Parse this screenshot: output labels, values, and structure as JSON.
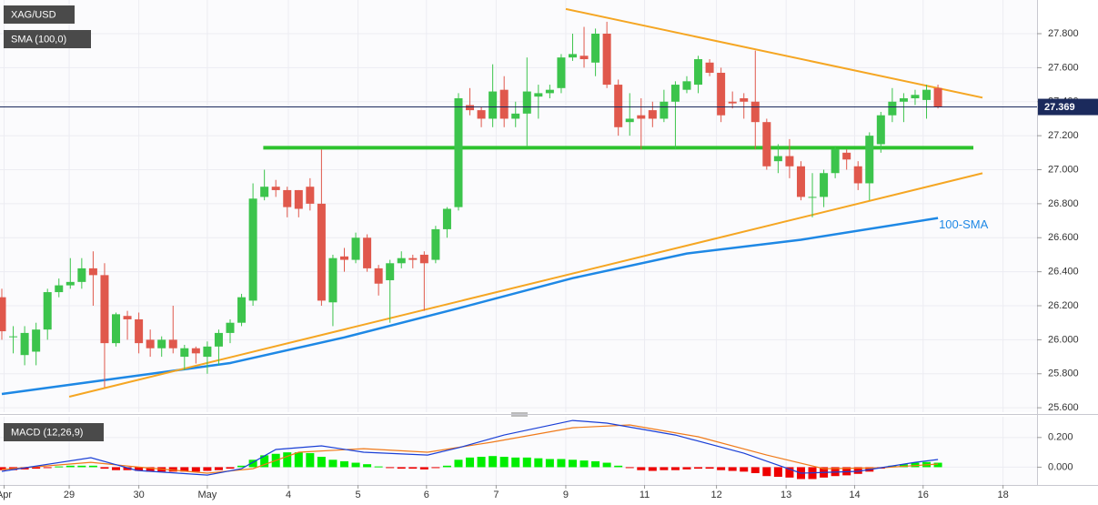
{
  "chart_data": [
    {
      "type": "candlestick",
      "title": "XAG/USD",
      "indicator_label": "SMA (100,0)",
      "up_color": "#3cc44c",
      "down_color": "#e0584c",
      "open": [
        26.25,
        26.02,
        25.91,
        25.93,
        26.06,
        26.28,
        26.32,
        26.34,
        26.42,
        26.38,
        25.98,
        26.14,
        26.12,
        26.0,
        25.95,
        26.0,
        25.9,
        25.95,
        25.9,
        25.96,
        26.04,
        26.1,
        26.23,
        26.84,
        26.9,
        26.88,
        26.88,
        26.9,
        26.8,
        26.22,
        26.49,
        26.47,
        26.6,
        26.42,
        26.35,
        26.45,
        26.48,
        26.5,
        26.47,
        26.65,
        26.78,
        27.38,
        27.35,
        27.3,
        27.47,
        27.3,
        27.33,
        27.43,
        27.45,
        27.48,
        27.66,
        27.67,
        27.63,
        27.8,
        27.5,
        27.28,
        27.32,
        27.35,
        27.3,
        27.4,
        27.47,
        27.5,
        27.63,
        27.57,
        27.4,
        27.42,
        27.4,
        27.28,
        27.05,
        27.08,
        27.02,
        26.84,
        26.84,
        26.98,
        27.1,
        27.02,
        26.92,
        27.15,
        27.32,
        27.4,
        27.42,
        27.41,
        27.48
      ],
      "high": [
        26.3,
        26.08,
        26.08,
        26.1,
        26.3,
        26.36,
        26.48,
        26.48,
        26.52,
        26.45,
        26.16,
        26.17,
        26.16,
        26.06,
        26.02,
        26.2,
        25.97,
        25.96,
        25.99,
        26.06,
        26.12,
        26.27,
        26.92,
        27.0,
        26.94,
        26.9,
        26.88,
        26.95,
        27.12,
        26.5,
        26.54,
        26.63,
        26.62,
        26.44,
        26.47,
        26.52,
        26.5,
        26.52,
        26.67,
        26.78,
        27.45,
        27.48,
        27.37,
        27.62,
        27.55,
        27.4,
        27.66,
        27.5,
        27.5,
        27.68,
        27.8,
        27.84,
        27.83,
        27.87,
        27.53,
        27.45,
        27.42,
        27.4,
        27.47,
        27.52,
        27.55,
        27.67,
        27.65,
        27.6,
        27.46,
        27.45,
        27.7,
        27.3,
        27.15,
        27.18,
        27.05,
        26.98,
        27.0,
        27.14,
        27.12,
        27.05,
        27.22,
        27.34,
        27.48,
        27.45,
        27.47,
        27.5,
        27.5
      ],
      "low": [
        26.0,
        25.92,
        25.85,
        25.85,
        26.0,
        26.25,
        26.3,
        26.3,
        26.2,
        25.72,
        25.96,
        26.0,
        25.92,
        25.9,
        25.9,
        25.92,
        25.82,
        25.86,
        25.8,
        25.85,
        25.98,
        26.08,
        26.2,
        26.82,
        26.84,
        26.72,
        26.72,
        26.76,
        26.2,
        26.08,
        26.4,
        26.45,
        26.4,
        26.26,
        26.1,
        26.42,
        26.42,
        26.17,
        26.45,
        26.6,
        26.76,
        27.32,
        27.25,
        27.25,
        27.25,
        27.25,
        27.14,
        27.3,
        27.42,
        27.45,
        27.64,
        27.6,
        27.55,
        27.48,
        27.2,
        27.2,
        27.12,
        27.25,
        27.28,
        27.12,
        27.45,
        27.45,
        27.55,
        27.28,
        27.36,
        27.3,
        27.12,
        27.0,
        26.98,
        26.95,
        26.82,
        26.72,
        26.78,
        26.95,
        27.0,
        26.88,
        26.82,
        27.1,
        27.28,
        27.28,
        27.38,
        27.3,
        27.36
      ],
      "close": [
        26.05,
        26.02,
        26.04,
        26.06,
        26.28,
        26.32,
        26.34,
        26.42,
        26.38,
        25.98,
        26.15,
        26.12,
        25.98,
        25.95,
        26.0,
        25.95,
        25.95,
        25.92,
        25.96,
        26.04,
        26.1,
        26.25,
        26.83,
        26.9,
        26.88,
        26.78,
        26.77,
        26.8,
        26.23,
        26.48,
        26.47,
        26.6,
        26.42,
        26.33,
        26.45,
        26.48,
        26.47,
        26.45,
        26.65,
        26.77,
        27.42,
        27.35,
        27.3,
        27.46,
        27.3,
        27.33,
        27.46,
        27.45,
        27.47,
        27.66,
        27.68,
        27.65,
        27.8,
        27.5,
        27.25,
        27.3,
        27.3,
        27.3,
        27.4,
        27.5,
        27.52,
        27.65,
        27.57,
        27.32,
        27.39,
        27.4,
        27.28,
        27.02,
        27.08,
        27.02,
        26.84,
        26.84,
        26.98,
        27.12,
        27.06,
        26.92,
        27.2,
        27.32,
        27.4,
        27.42,
        27.44,
        27.47,
        27.369
      ],
      "sma": {
        "name": "100-SMA",
        "color": "#1e88e5",
        "x": [
          0,
          10,
          20,
          30,
          40,
          50,
          60,
          70,
          82
        ],
        "values": [
          25.681,
          25.772,
          25.863,
          26.014,
          26.185,
          26.362,
          26.507,
          26.588,
          26.716
        ]
      },
      "trendlines": [
        {
          "color": "#f5a623",
          "x": [
            49.4,
            85.9
          ],
          "values": [
            27.945,
            27.424
          ]
        },
        {
          "color": "#f5a623",
          "x": [
            5.9,
            85.9
          ],
          "values": [
            25.665,
            26.979
          ]
        },
        {
          "color": "#2ec22e",
          "x": [
            22.9,
            85.1
          ],
          "values": [
            27.129,
            27.129
          ]
        }
      ],
      "last_price": 27.369,
      "last_price_color": "#1b2a5c",
      "xlim": [
        -0.16,
        90.68
      ],
      "ylim": [
        25.574,
        27.998
      ],
      "yticks": [
        {
          "value": 25.6,
          "label": "25.600"
        },
        {
          "value": 25.8,
          "label": "25.800"
        },
        {
          "value": 26.0,
          "label": "26.000"
        },
        {
          "value": 26.2,
          "label": "26.200"
        },
        {
          "value": 26.4,
          "label": "26.400"
        },
        {
          "value": 26.6,
          "label": "26.600"
        },
        {
          "value": 26.8,
          "label": "26.800"
        },
        {
          "value": 27.0,
          "label": "27.000"
        },
        {
          "value": 27.2,
          "label": "27.200"
        },
        {
          "value": 27.4,
          "label": "27.400"
        },
        {
          "value": 27.6,
          "label": "27.600"
        },
        {
          "value": 27.8,
          "label": "27.800"
        }
      ],
      "xticks": [
        {
          "value": 0.2,
          "label": "Apr"
        },
        {
          "value": 5.9,
          "label": "29"
        },
        {
          "value": 12.0,
          "label": "30"
        },
        {
          "value": 18.0,
          "label": "May"
        },
        {
          "value": 25.1,
          "label": "4"
        },
        {
          "value": 31.2,
          "label": "5"
        },
        {
          "value": 37.2,
          "label": "6"
        },
        {
          "value": 43.3,
          "label": "7"
        },
        {
          "value": 49.4,
          "label": "9"
        },
        {
          "value": 56.3,
          "label": "11"
        },
        {
          "value": 62.6,
          "label": "12"
        },
        {
          "value": 68.7,
          "label": "13"
        },
        {
          "value": 74.7,
          "label": "14"
        },
        {
          "value": 80.7,
          "label": "16"
        },
        {
          "value": 87.7,
          "label": "18"
        }
      ],
      "grid": true
    },
    {
      "type": "macd",
      "title": "MACD (12,26,9)",
      "up_color": "#00ee00",
      "down_color": "#ee0000",
      "histogram": [
        -0.02,
        -0.02,
        -0.015,
        -0.01,
        -0.005,
        0.005,
        0.01,
        0.01,
        0.01,
        -0.01,
        -0.02,
        -0.02,
        -0.025,
        -0.03,
        -0.03,
        -0.03,
        -0.03,
        -0.03,
        -0.025,
        -0.02,
        -0.01,
        0.01,
        0.05,
        0.08,
        0.09,
        0.1,
        0.1,
        0.095,
        0.07,
        0.05,
        0.04,
        0.03,
        0.02,
        0.005,
        -0.005,
        -0.01,
        -0.01,
        -0.015,
        -0.005,
        0.01,
        0.05,
        0.065,
        0.07,
        0.075,
        0.07,
        0.065,
        0.065,
        0.06,
        0.055,
        0.055,
        0.05,
        0.045,
        0.04,
        0.03,
        0.01,
        -0.005,
        -0.02,
        -0.025,
        -0.02,
        -0.02,
        -0.015,
        -0.01,
        -0.01,
        -0.02,
        -0.025,
        -0.03,
        -0.04,
        -0.06,
        -0.065,
        -0.07,
        -0.08,
        -0.08,
        -0.07,
        -0.06,
        -0.055,
        -0.045,
        -0.03,
        -0.01,
        0.01,
        0.02,
        0.03,
        0.035,
        0.03
      ],
      "macd": {
        "color": "#1a3fd6",
        "x": [
          0,
          7.8,
          11.8,
          18,
          21,
          24,
          28,
          31.7,
          37.3,
          40,
          44,
          50,
          53,
          59,
          65,
          70,
          75,
          80,
          82
        ],
        "values": [
          -0.028,
          0.064,
          -0.022,
          -0.053,
          -0.01,
          0.119,
          0.144,
          0.101,
          0.082,
          0.131,
          0.217,
          0.315,
          0.297,
          0.217,
          0.094,
          -0.04,
          -0.028,
          0.033,
          0.052
        ]
      },
      "signal": {
        "color": "#f07a1a",
        "x": [
          0,
          7.8,
          11.8,
          18,
          22,
          26,
          31.7,
          37.3,
          42.9,
          50,
          55,
          61,
          67,
          72,
          77,
          82
        ],
        "values": [
          -0.016,
          0.033,
          0.002,
          -0.04,
          -0.01,
          0.101,
          0.125,
          0.101,
          0.168,
          0.266,
          0.285,
          0.205,
          0.082,
          -0.01,
          -0.004,
          0.021
        ]
      },
      "xlim": [
        -0.16,
        90.68
      ],
      "ylim": [
        -0.12,
        0.34
      ],
      "yticks": [
        {
          "value": 0.2,
          "label": "0.200"
        },
        {
          "value": 0,
          "label": "0.000"
        }
      ]
    }
  ]
}
